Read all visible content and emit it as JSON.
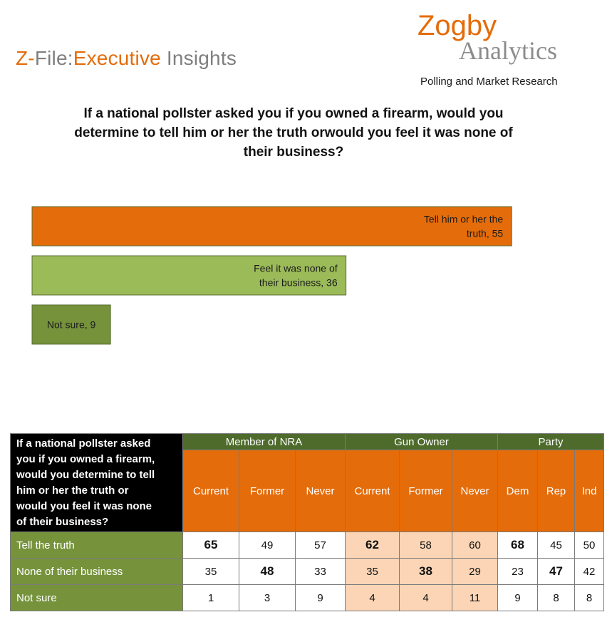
{
  "header": {
    "brand_part1": "Z-",
    "brand_part2": "File:",
    "brand_part3": "Executive",
    "brand_part4": " Insights",
    "logo_zogby": "Zogby",
    "logo_analytics": "Analytics",
    "tagline": "Polling and Market Research"
  },
  "question": "If a national pollster asked you if you owned a firearm, would you determine to tell him or her the truth orwould you feel it was none of their business?",
  "colors": {
    "orange": "#E46C0A",
    "light_green": "#9BBB59",
    "dark_green": "#76933C",
    "group_green": "#4E6B2C",
    "peach": "#FBD5B5"
  },
  "chart_data": {
    "type": "bar",
    "orientation": "horizontal",
    "categories": [
      "Tell him or her the truth",
      "Feel it was none of their business",
      "Not sure"
    ],
    "values": [
      55,
      36,
      9
    ],
    "data_labels": [
      [
        "Tell him or her the",
        "truth, 55"
      ],
      [
        "Feel it was none of",
        "their business, 36"
      ],
      [
        "Not sure, 9"
      ]
    ],
    "colors": [
      "#E46C0A",
      "#9BBB59",
      "#76933C"
    ],
    "grid": false,
    "legend": "none"
  },
  "table": {
    "corner": [
      "If a national pollster asked",
      "you if you owned a firearm,",
      "would you determine to tell",
      "him or her the truth or",
      "would you feel it was none",
      "of their business?"
    ],
    "groups": [
      {
        "label": "Member of NRA",
        "span": 3
      },
      {
        "label": "Gun Owner",
        "span": 3
      },
      {
        "label": "Party",
        "span": 3
      }
    ],
    "columns": [
      "Current",
      "Former",
      "Never",
      "Current",
      "Former",
      "Never",
      "Dem",
      "Rep",
      "Ind"
    ],
    "rows": [
      {
        "label": "Tell the truth",
        "values": [
          "65",
          "49",
          "57",
          "62",
          "58",
          "60",
          "68",
          "45",
          "50"
        ],
        "bold": [
          0,
          3,
          6
        ]
      },
      {
        "label": "None of their business",
        "values": [
          "35",
          "48",
          "33",
          "35",
          "38",
          "29",
          "23",
          "47",
          "42"
        ],
        "bold": [
          1,
          4,
          7
        ]
      },
      {
        "label": "Not sure",
        "values": [
          "1",
          "3",
          "9",
          "4",
          "4",
          "11",
          "9",
          "8",
          "8"
        ],
        "bold": []
      }
    ]
  }
}
